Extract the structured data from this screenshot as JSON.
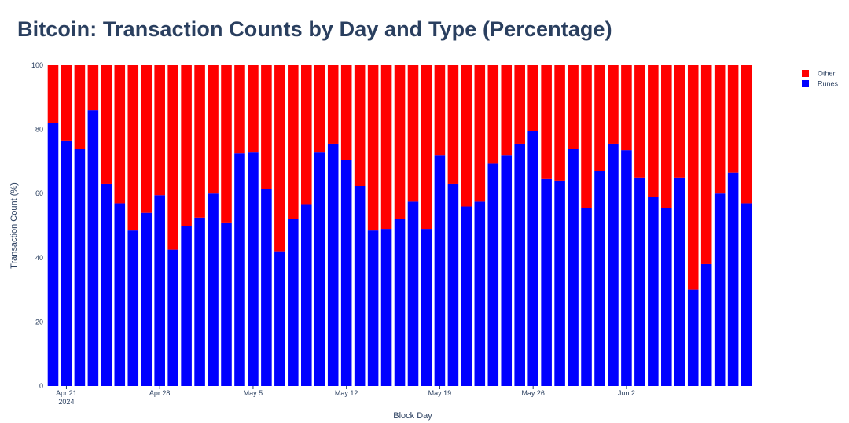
{
  "chart_data": {
    "type": "bar",
    "stacked": true,
    "title": "Bitcoin: Transaction Counts by Day and Type (Percentage)",
    "xlabel": "Block Day",
    "ylabel": "Transaction Count (%)",
    "ylim": [
      0,
      100
    ],
    "yticks": [
      0,
      20,
      40,
      60,
      80,
      100
    ],
    "xtick_labels": [
      {
        "index": 1,
        "label": "Apr 21",
        "sublabel": "2024"
      },
      {
        "index": 8,
        "label": "Apr 28"
      },
      {
        "index": 15,
        "label": "May 5"
      },
      {
        "index": 22,
        "label": "May 12"
      },
      {
        "index": 29,
        "label": "May 19"
      },
      {
        "index": 36,
        "label": "May 26"
      },
      {
        "index": 43,
        "label": "Jun 2"
      }
    ],
    "x": [
      "Apr 20",
      "Apr 21",
      "Apr 22",
      "Apr 23",
      "Apr 24",
      "Apr 25",
      "Apr 26",
      "Apr 27",
      "Apr 28",
      "Apr 29",
      "Apr 30",
      "May 1",
      "May 2",
      "May 3",
      "May 4",
      "May 5",
      "May 6",
      "May 7",
      "May 8",
      "May 9",
      "May 10",
      "May 11",
      "May 12",
      "May 13",
      "May 14",
      "May 15",
      "May 16",
      "May 17",
      "May 18",
      "May 19",
      "May 20",
      "May 21",
      "May 22",
      "May 23",
      "May 24",
      "May 25",
      "May 26",
      "May 27",
      "May 28",
      "May 29",
      "May 30",
      "May 31",
      "Jun 1",
      "Jun 2",
      "Jun 3",
      "Jun 4",
      "Jun 5",
      "Jun 6",
      "Jun 7",
      "Jun 8",
      "Jun 9",
      "Jun 10",
      "Jun 11",
      "Jun 12",
      "Jun 13"
    ],
    "series": [
      {
        "name": "Runes",
        "color": "#0000ff",
        "values": [
          82,
          76.5,
          74,
          86,
          63,
          57,
          48.5,
          54,
          59.5,
          42.5,
          50,
          52.5,
          60,
          51,
          72.5,
          73,
          61.5,
          42,
          52,
          56.5,
          73,
          75.5,
          70.5,
          62.5,
          48.5,
          49,
          52,
          57.5,
          49,
          72,
          63,
          56,
          57.5,
          69.5,
          72,
          75.5,
          79.5,
          64.5,
          64,
          74,
          55.5,
          67,
          75.5,
          73.5,
          65,
          59,
          55.5,
          65,
          30,
          38,
          60,
          66.5,
          57,
          0,
          0
        ]
      },
      {
        "name": "Other",
        "color": "#ff0000",
        "values": [
          18,
          23.5,
          26,
          14,
          37,
          43,
          51.5,
          46,
          40.5,
          57.5,
          50,
          47.5,
          40,
          49,
          27.5,
          27,
          38.5,
          58,
          48,
          43.5,
          27,
          24.5,
          29.5,
          37.5,
          51.5,
          51,
          48,
          42.5,
          51,
          28,
          37,
          44,
          42.5,
          30.5,
          28,
          24.5,
          20.5,
          35.5,
          36,
          26,
          44.5,
          33,
          24.5,
          26.5,
          35,
          41,
          44.5,
          35,
          70,
          62,
          40,
          33.5,
          43,
          0,
          0
        ]
      }
    ],
    "legend": {
      "position": "top-right",
      "entries": [
        "Other",
        "Runes"
      ]
    }
  }
}
